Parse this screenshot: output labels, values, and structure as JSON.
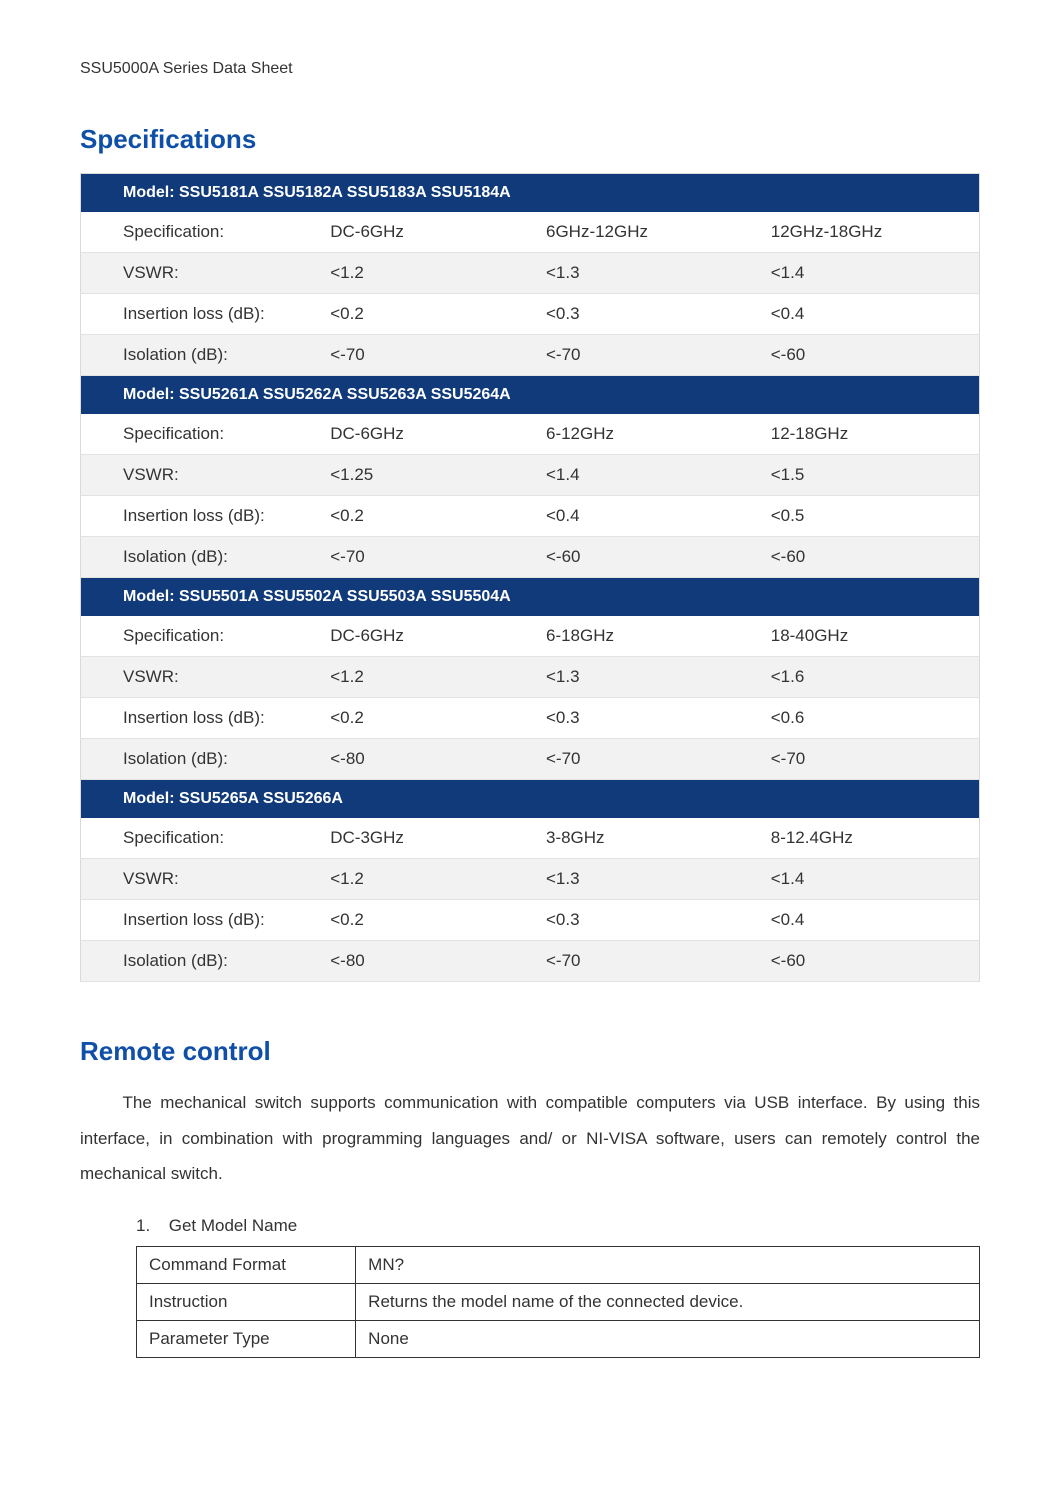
{
  "colors": {
    "heading": "#0f4fa8",
    "model_row_bg": "#103a7a",
    "model_row_fg": "#ffffff",
    "row_alt_bg": "#f2f2f2",
    "row_bg": "#ffffff",
    "border": "#d9d9d9",
    "text": "#333333",
    "cmd_border": "#333333"
  },
  "typography": {
    "body_fontsize_pt": 12,
    "heading_fontsize_pt": 20,
    "model_row_fontsize_pt": 12,
    "line_height_body": 2.1
  },
  "doc": {
    "header": "SSU5000A Series Data Sheet"
  },
  "sections": {
    "specifications_title": "Specifications",
    "remote_title": "Remote control"
  },
  "spec_col_widths_pct": [
    26,
    24,
    25,
    25
  ],
  "spec_row_labels": [
    "Specification:",
    "VSWR:",
    "Insertion loss (dB):",
    "Isolation (dB):"
  ],
  "spec_groups": [
    {
      "model_label": "Model: SSU5181A   SSU5182A   SSU5183A   SSU5184A",
      "rows": [
        [
          "DC-6GHz",
          "6GHz-12GHz",
          "12GHz-18GHz"
        ],
        [
          "<1.2",
          "<1.3",
          "<1.4"
        ],
        [
          "<0.2",
          "<0.3",
          "<0.4"
        ],
        [
          "<-70",
          "<-70",
          "<-60"
        ]
      ]
    },
    {
      "model_label": "Model: SSU5261A   SSU5262A   SSU5263A   SSU5264A",
      "rows": [
        [
          "DC-6GHz",
          "6-12GHz",
          "12-18GHz"
        ],
        [
          "<1.25",
          "<1.4",
          "<1.5"
        ],
        [
          "<0.2",
          "<0.4",
          "<0.5"
        ],
        [
          "<-70",
          "<-60",
          "<-60"
        ]
      ]
    },
    {
      "model_label": "Model: SSU5501A   SSU5502A   SSU5503A   SSU5504A",
      "rows": [
        [
          "DC-6GHz",
          "6-18GHz",
          "18-40GHz"
        ],
        [
          "<1.2",
          "<1.3",
          "<1.6"
        ],
        [
          "<0.2",
          "<0.3",
          "<0.6"
        ],
        [
          "<-80",
          "<-70",
          "<-70"
        ]
      ]
    },
    {
      "model_label": "Model: SSU5265A   SSU5266A",
      "rows": [
        [
          "DC-3GHz",
          "3-8GHz",
          "8-12.4GHz"
        ],
        [
          "<1.2",
          "<1.3",
          "<1.4"
        ],
        [
          "<0.2",
          "<0.3",
          "<0.4"
        ],
        [
          "<-80",
          "<-70",
          "<-60"
        ]
      ]
    }
  ],
  "remote": {
    "paragraph": "The mechanical switch supports communication with compatible computers via USB interface. By using this interface, in combination with programming languages and/ or NI-VISA software, users can remotely control the mechanical switch.",
    "command": {
      "index": "1.",
      "title": "Get Model Name",
      "col_widths_pct": [
        26,
        74
      ],
      "rows": [
        [
          "Command Format",
          "MN?"
        ],
        [
          "Instruction",
          "Returns the model name of the connected device."
        ],
        [
          "Parameter Type",
          "None"
        ]
      ]
    }
  }
}
